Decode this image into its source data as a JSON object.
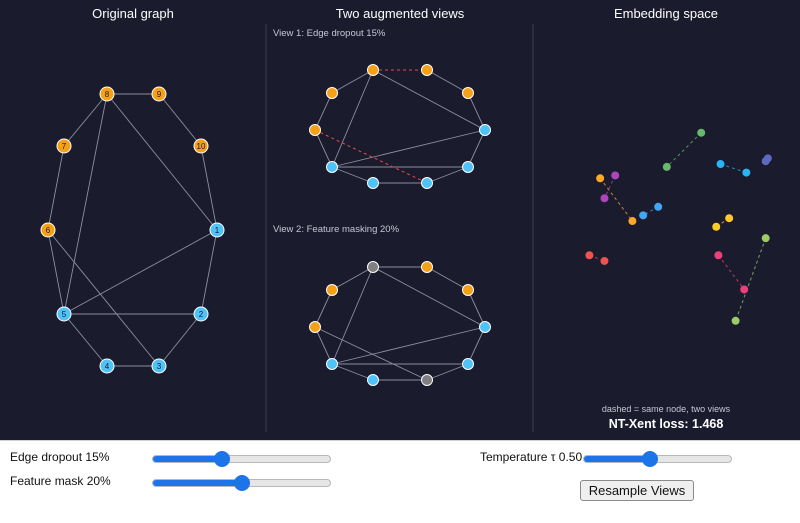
{
  "panels": {
    "original_title": "Original graph",
    "augmented_title": "Two augmented views",
    "embedding_title": "Embedding space",
    "view1_label": "View 1: Edge dropout 15%",
    "view2_label": "View 2: Feature masking 20%",
    "embedding_note": "dashed = same node, two views",
    "loss_label": "NT-Xent loss: 1.468"
  },
  "colors": {
    "background": "#1b1b2e",
    "divider": "#3e3e52",
    "edge": "#8e8ea0",
    "dropped_edge": "#e84a4a",
    "class_a": "#f5a117",
    "class_b": "#4fc3f7",
    "masked": "#808080"
  },
  "graph": {
    "nodes": [
      {
        "id": 1,
        "label": "1",
        "class": "b"
      },
      {
        "id": 2,
        "label": "2",
        "class": "b"
      },
      {
        "id": 3,
        "label": "3",
        "class": "b"
      },
      {
        "id": 4,
        "label": "4",
        "class": "b"
      },
      {
        "id": 5,
        "label": "5",
        "class": "b"
      },
      {
        "id": 6,
        "label": "6",
        "class": "a"
      },
      {
        "id": 7,
        "label": "7",
        "class": "a"
      },
      {
        "id": 8,
        "label": "8",
        "class": "a"
      },
      {
        "id": 9,
        "label": "9",
        "class": "a"
      },
      {
        "id": 10,
        "label": "10",
        "class": "a"
      }
    ],
    "edges": [
      [
        1,
        2
      ],
      [
        2,
        3
      ],
      [
        3,
        4
      ],
      [
        4,
        5
      ],
      [
        5,
        6
      ],
      [
        6,
        7
      ],
      [
        7,
        8
      ],
      [
        8,
        9
      ],
      [
        9,
        10
      ],
      [
        10,
        1
      ],
      [
        8,
        1
      ],
      [
        8,
        5
      ],
      [
        5,
        2
      ],
      [
        5,
        1
      ],
      [
        6,
        3
      ]
    ]
  },
  "view1": {
    "dropped_edges": [
      [
        8,
        9
      ],
      [
        6,
        3
      ]
    ],
    "masked_nodes": []
  },
  "view2": {
    "dropped_edges": [],
    "masked_nodes": [
      8,
      3
    ]
  },
  "embedding": {
    "pairs": [
      {
        "color": "#66bb6a",
        "a": [
          0.68,
          0.22
        ],
        "b": [
          0.52,
          0.34
        ]
      },
      {
        "color": "#29b6f6",
        "a": [
          0.77,
          0.33
        ],
        "b": [
          0.89,
          0.36
        ]
      },
      {
        "color": "#5c6bc0",
        "a": [
          0.99,
          0.31
        ],
        "b": [
          0.98,
          0.32
        ]
      },
      {
        "color": "#ffa726",
        "a": [
          0.21,
          0.38
        ],
        "b": [
          0.36,
          0.53
        ]
      },
      {
        "color": "#ab47bc",
        "a": [
          0.28,
          0.37
        ],
        "b": [
          0.23,
          0.45
        ]
      },
      {
        "color": "#42a5f5",
        "a": [
          0.48,
          0.48
        ],
        "b": [
          0.41,
          0.51
        ]
      },
      {
        "color": "#ffca28",
        "a": [
          0.81,
          0.52
        ],
        "b": [
          0.75,
          0.55
        ]
      },
      {
        "color": "#ef5350",
        "a": [
          0.16,
          0.65
        ],
        "b": [
          0.23,
          0.67
        ]
      },
      {
        "color": "#ec407a",
        "a": [
          0.76,
          0.65
        ],
        "b": [
          0.88,
          0.77
        ]
      },
      {
        "color": "#9ccc65",
        "a": [
          0.98,
          0.59
        ],
        "b": [
          0.84,
          0.88
        ]
      }
    ]
  },
  "controls": {
    "edge_dropout_label": "Edge dropout 15%",
    "edge_dropout_value": 0.39,
    "feature_mask_label": "Feature mask 20%",
    "feature_mask_value": 0.5,
    "temperature_label": "Temperature τ 0.50",
    "temperature_value": 0.45,
    "resample_label": "Resample Views"
  }
}
